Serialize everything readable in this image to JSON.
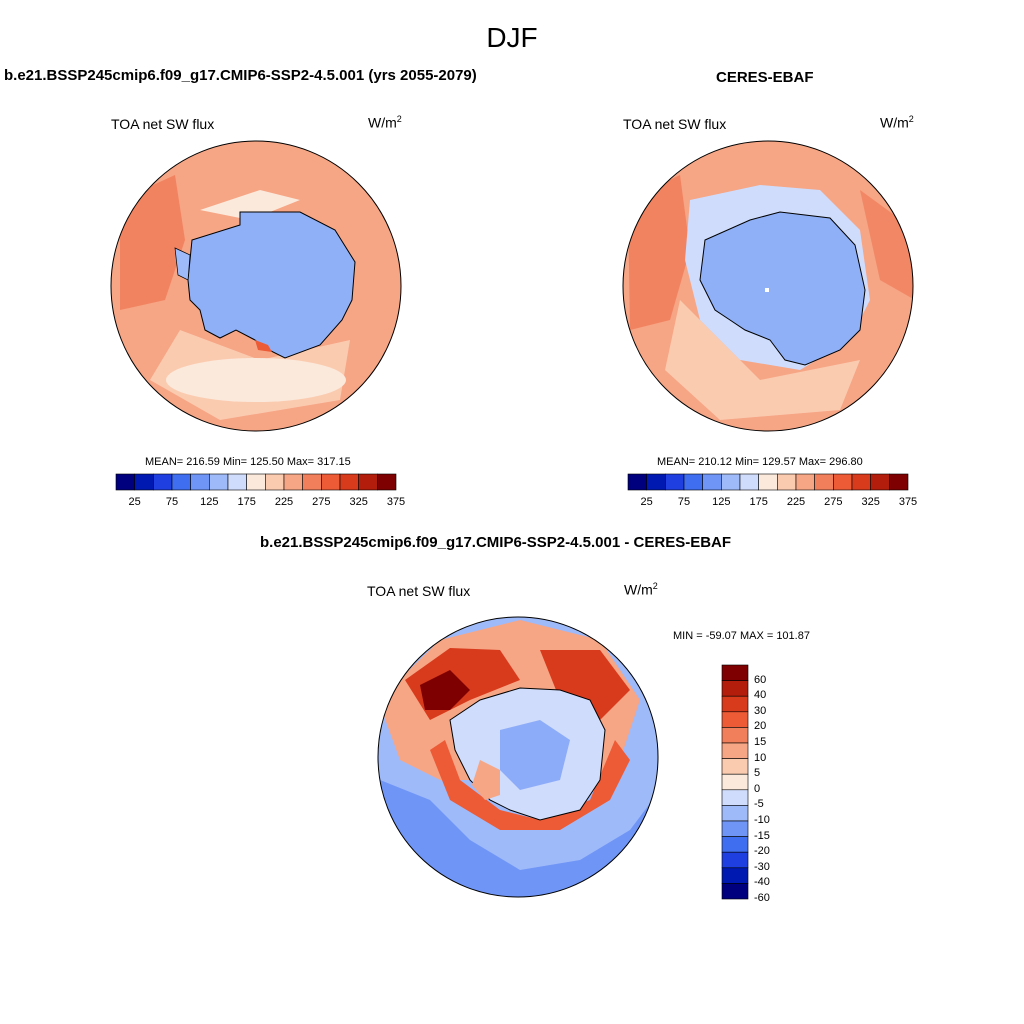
{
  "figure": {
    "title": "DJF"
  },
  "panels": [
    {
      "title": "b.e21.BSSP245cmip6.f09_g17.CMIP6-SSP2-4.5.001 (yrs 2055-2079)",
      "variable": "TOA net SW flux",
      "units": "W/m",
      "units_exp": "2",
      "stats": "MEAN= 216.59  Min= 125.50  Max= 317.15"
    },
    {
      "title": "CERES-EBAF",
      "variable": "TOA net SW flux",
      "units": "W/m",
      "units_exp": "2",
      "stats": "MEAN= 210.12  Min= 129.57  Max= 296.80"
    },
    {
      "title": "b.e21.BSSP245cmip6.f09_g17.CMIP6-SSP2-4.5.001 - CERES-EBAF",
      "variable": "TOA net SW flux",
      "units": "W/m",
      "units_exp": "2",
      "stats": "MIN = -59.07 MAX = 101.87"
    }
  ],
  "colorbars": {
    "flux": {
      "labels": [
        "25",
        "75",
        "125",
        "175",
        "225",
        "275",
        "325",
        "375"
      ],
      "colors": [
        "#00007f",
        "#0019b0",
        "#1f3fe0",
        "#3f6ff0",
        "#6f95f7",
        "#9fbaf9",
        "#cfdcfb",
        "#fbe9dc",
        "#fbcbb0",
        "#f6a585",
        "#f17f5c",
        "#ec5a36",
        "#d83a1c",
        "#b31d0c",
        "#7f0000"
      ]
    },
    "diff": {
      "labels": [
        "60",
        "40",
        "30",
        "20",
        "15",
        "10",
        "5",
        "0",
        "-5",
        "-10",
        "-15",
        "-20",
        "-30",
        "-40",
        "-60"
      ],
      "colors": [
        "#7f0000",
        "#b31d0c",
        "#d83a1c",
        "#ec5a36",
        "#f17f5c",
        "#f6a585",
        "#fbcbb0",
        "#fbe9dc",
        "#cfdcfb",
        "#9fbaf9",
        "#6f95f7",
        "#3f6ff0",
        "#1f3fe0",
        "#0019b0",
        "#00007f"
      ]
    }
  }
}
